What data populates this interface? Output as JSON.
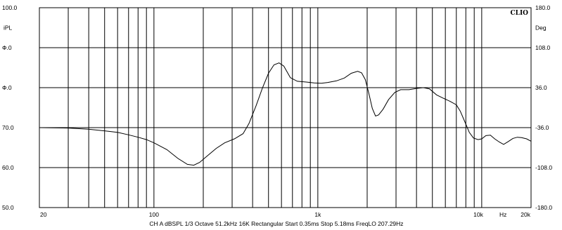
{
  "chart_data": {
    "type": "line",
    "brand": "CLIO",
    "left_axis": {
      "unit_label": "iPL",
      "ticks": [
        {
          "value": 100,
          "label": "100.0"
        },
        {
          "value": 90,
          "label": "Ф.0"
        },
        {
          "value": 80,
          "label": "Ф.0"
        },
        {
          "value": 70,
          "label": "70.0"
        },
        {
          "value": 60,
          "label": "60.0"
        },
        {
          "value": 50,
          "label": "50.0"
        }
      ],
      "ylim": [
        50,
        100
      ]
    },
    "right_axis": {
      "unit_label": "Deg",
      "ticks": [
        {
          "value": 180,
          "label": "180.0"
        },
        {
          "value": 108,
          "label": "108.0"
        },
        {
          "value": 36,
          "label": "36.0"
        },
        {
          "value": -36,
          "label": "-36.0"
        },
        {
          "value": -108,
          "label": "-108.0"
        },
        {
          "value": -180,
          "label": "-180.0"
        }
      ],
      "ylim": [
        -180,
        180
      ]
    },
    "x_axis": {
      "scale": "log",
      "xlim": [
        20,
        20000
      ],
      "tick_labels": [
        {
          "value": 20,
          "label": "20"
        },
        {
          "value": 100,
          "label": "100"
        },
        {
          "value": 1000,
          "label": "1k"
        },
        {
          "value": 10000,
          "label": "10k"
        },
        {
          "value": 20000,
          "label": "20k"
        }
      ],
      "unit_label": "Hz",
      "gridlines": [
        30,
        40,
        50,
        60,
        70,
        80,
        90,
        100,
        200,
        300,
        400,
        500,
        600,
        700,
        800,
        900,
        1000,
        2000,
        3000,
        4000,
        5000,
        6000,
        7000,
        8000,
        9000,
        10000
      ]
    },
    "footer": "CH A   dBSPL   1/3 Octave   51.2kHz   16K   Rectangular   Start 0.35ms    Stop 5.18ms    FreqLO 207.29Hz",
    "series": [
      {
        "color": "#000000",
        "points": [
          [
            20,
            70.0
          ],
          [
            30,
            69.9
          ],
          [
            40,
            69.6
          ],
          [
            50,
            69.2
          ],
          [
            60,
            68.8
          ],
          [
            70,
            68.2
          ],
          [
            80,
            67.6
          ],
          [
            90,
            67.0
          ],
          [
            100,
            66.2
          ],
          [
            120,
            64.5
          ],
          [
            140,
            62.3
          ],
          [
            160,
            60.8
          ],
          [
            175,
            60.6
          ],
          [
            190,
            61.3
          ],
          [
            210,
            62.8
          ],
          [
            240,
            64.8
          ],
          [
            270,
            66.2
          ],
          [
            310,
            67.2
          ],
          [
            350,
            68.5
          ],
          [
            380,
            71.0
          ],
          [
            420,
            75.5
          ],
          [
            460,
            80.0
          ],
          [
            500,
            83.6
          ],
          [
            540,
            85.7
          ],
          [
            580,
            86.2
          ],
          [
            620,
            85.4
          ],
          [
            680,
            82.5
          ],
          [
            750,
            81.6
          ],
          [
            850,
            81.4
          ],
          [
            950,
            81.2
          ],
          [
            1050,
            81.1
          ],
          [
            1150,
            81.3
          ],
          [
            1300,
            81.7
          ],
          [
            1450,
            82.4
          ],
          [
            1600,
            83.6
          ],
          [
            1750,
            84.1
          ],
          [
            1850,
            83.7
          ],
          [
            1950,
            82.0
          ],
          [
            2050,
            78.5
          ],
          [
            2150,
            74.8
          ],
          [
            2250,
            72.9
          ],
          [
            2350,
            73.2
          ],
          [
            2500,
            74.6
          ],
          [
            2700,
            77.0
          ],
          [
            2950,
            78.8
          ],
          [
            3200,
            79.5
          ],
          [
            3600,
            79.5
          ],
          [
            4000,
            79.8
          ],
          [
            4400,
            80.0
          ],
          [
            4800,
            79.7
          ],
          [
            5300,
            78.2
          ],
          [
            5800,
            77.4
          ],
          [
            6400,
            76.6
          ],
          [
            7000,
            75.7
          ],
          [
            7400,
            74.1
          ],
          [
            7900,
            71.4
          ],
          [
            8400,
            68.8
          ],
          [
            8900,
            67.4
          ],
          [
            9500,
            67.0
          ],
          [
            10000,
            67.2
          ],
          [
            10600,
            68.0
          ],
          [
            11300,
            68.1
          ],
          [
            12000,
            67.2
          ],
          [
            12800,
            66.4
          ],
          [
            13600,
            65.8
          ],
          [
            14500,
            66.5
          ],
          [
            15500,
            67.3
          ],
          [
            16500,
            67.6
          ],
          [
            17500,
            67.5
          ],
          [
            18800,
            67.2
          ],
          [
            20000,
            66.6
          ]
        ]
      }
    ]
  }
}
